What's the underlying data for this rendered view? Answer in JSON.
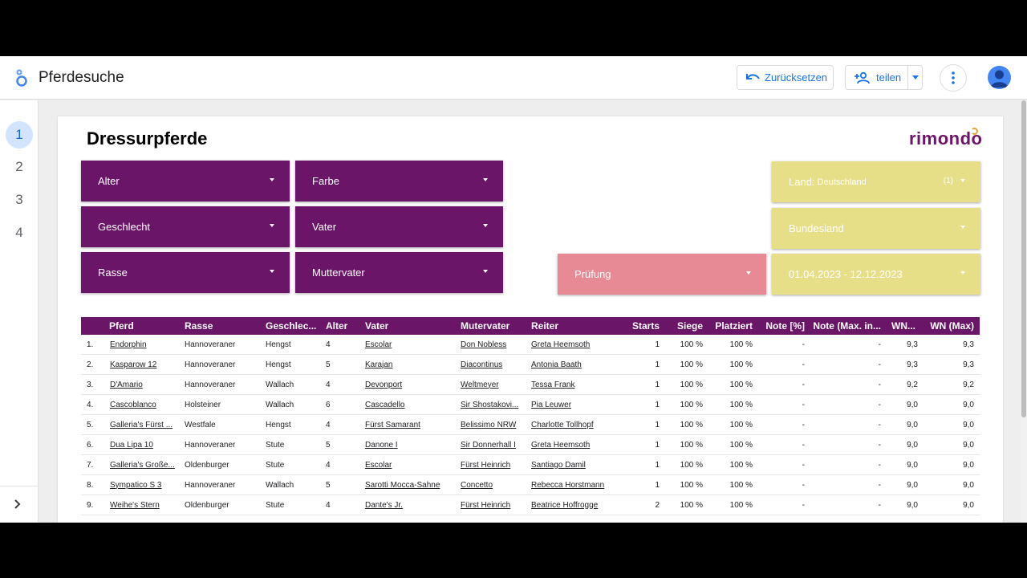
{
  "app": {
    "title": "Pferdesuche"
  },
  "toolbar": {
    "reset_label": "Zurücksetzen",
    "share_label": "teilen"
  },
  "nav": {
    "pages": [
      "1",
      "2",
      "3",
      "4"
    ],
    "active": "1"
  },
  "report": {
    "title": "Dressurpferde",
    "logo_text": "rimondo",
    "brand_color": "#6a1567",
    "filters_purple": [
      "Alter",
      "Farbe",
      "Geschlecht",
      "Vater",
      "Rasse",
      "Muttervater"
    ],
    "filter_pink": "Prüfung",
    "filter_land": {
      "label": "Land:",
      "value": "Deutschland",
      "count": "(1)"
    },
    "filter_bundesland": "Bundesland",
    "filter_date": "01.04.2023 - 12.12.2023"
  },
  "table": {
    "headers": [
      "Pferd",
      "Rasse",
      "Geschlec...",
      "Alter",
      "Vater",
      "Mutervater",
      "Reiter",
      "Starts",
      "Siege",
      "Platziert",
      "Note [%]",
      "Note (Max. in...",
      "WN...",
      "WN (Max)"
    ],
    "rows": [
      [
        "1.",
        "Endorphin",
        "Hannoveraner",
        "Hengst",
        "4",
        "Escolar",
        "Don Nobless",
        "Greta Heemsoth",
        "1",
        "100 %",
        "100 %",
        "-",
        "-",
        "9,3",
        "9,3"
      ],
      [
        "2.",
        "Kasparow 12",
        "Hannoveraner",
        "Hengst",
        "5",
        "Karajan",
        "Diacontinus",
        "Antonia Baath",
        "1",
        "100 %",
        "100 %",
        "-",
        "-",
        "9,3",
        "9,3"
      ],
      [
        "3.",
        "D'Amario",
        "Hannoveraner",
        "Wallach",
        "4",
        "Devonport",
        "Weltmeyer",
        "Tessa Frank",
        "1",
        "100 %",
        "100 %",
        "-",
        "-",
        "9,2",
        "9,2"
      ],
      [
        "4.",
        "Cascoblanco",
        "Holsteiner",
        "Wallach",
        "6",
        "Cascadello",
        "Sir Shostakovi...",
        "Pia Leuwer",
        "1",
        "100 %",
        "100 %",
        "-",
        "-",
        "9,0",
        "9,0"
      ],
      [
        "5.",
        "Galleria's Fürst ...",
        "Westfale",
        "Hengst",
        "4",
        "Fürst Samarant",
        "Belissimo NRW",
        "Charlotte Tollhopf",
        "1",
        "100 %",
        "100 %",
        "-",
        "-",
        "9,0",
        "9,0"
      ],
      [
        "6.",
        "Dua Lipa 10",
        "Hannoveraner",
        "Stute",
        "5",
        "Danone I",
        "Sir Donnerhall I",
        "Greta Heemsoth",
        "1",
        "100 %",
        "100 %",
        "-",
        "-",
        "9,0",
        "9,0"
      ],
      [
        "7.",
        "Galleria's Große...",
        "Oldenburger",
        "Stute",
        "4",
        "Escolar",
        "Fürst Heinrich",
        "Santiago Damil",
        "1",
        "100 %",
        "100 %",
        "-",
        "-",
        "9,0",
        "9,0"
      ],
      [
        "8.",
        "Sympatico S 3",
        "Hannoveraner",
        "Wallach",
        "5",
        "Sarotti Mocca-Sahne",
        "Concetto",
        "Rebecca Horstmann",
        "1",
        "100 %",
        "100 %",
        "-",
        "-",
        "9,0",
        "9,0"
      ],
      [
        "9.",
        "Weihe's Stern",
        "Oldenburger",
        "Stute",
        "4",
        "Dante's Jr.",
        "Fürst Heinrich",
        "Beatrice Hoffrogge",
        "2",
        "100 %",
        "100 %",
        "-",
        "-",
        "9,0",
        "9,0"
      ]
    ]
  }
}
